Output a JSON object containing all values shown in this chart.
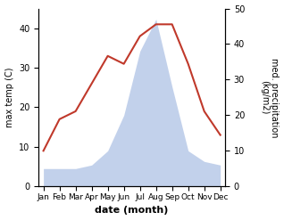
{
  "months": [
    "Jan",
    "Feb",
    "Mar",
    "Apr",
    "May",
    "Jun",
    "Jul",
    "Aug",
    "Sep",
    "Oct",
    "Nov",
    "Dec"
  ],
  "temperature": [
    9,
    17,
    19,
    26,
    33,
    31,
    38,
    41,
    41,
    31,
    19,
    13
  ],
  "precipitation": [
    5,
    5,
    5,
    6,
    10,
    20,
    38,
    47,
    28,
    10,
    7,
    6
  ],
  "temp_color": "#c0392b",
  "precip_color": "#b8c9e8",
  "ylabel_left": "max temp (C)",
  "ylabel_right": "med. precipitation\n(kg/m2)",
  "xlabel": "date (month)",
  "ylim_left": [
    0,
    45
  ],
  "ylim_right": [
    0,
    50
  ],
  "yticks_left": [
    0,
    10,
    20,
    30,
    40
  ],
  "yticks_right": [
    0,
    10,
    20,
    30,
    40,
    50
  ],
  "figsize": [
    3.18,
    2.47
  ],
  "dpi": 100
}
